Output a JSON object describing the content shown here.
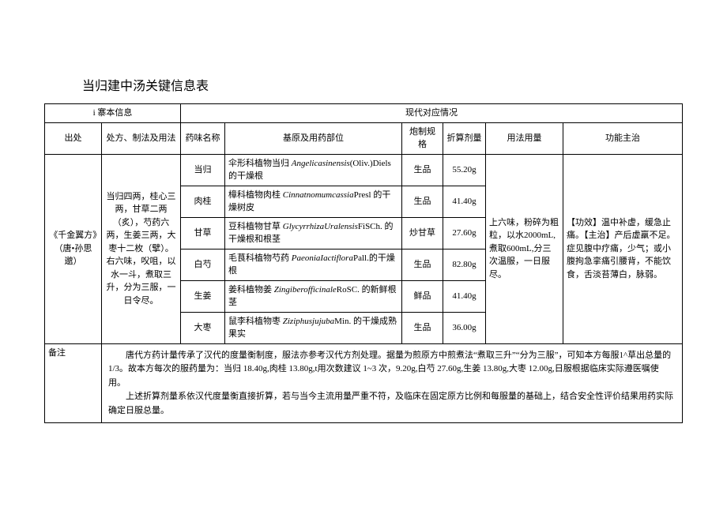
{
  "title": "当归建中汤关键信息表",
  "header_groups": {
    "left": "i 寨本信息",
    "right": "现代对应情况"
  },
  "columns": {
    "source": "出处",
    "rx": "处方、制法及用法",
    "herb": "药味名称",
    "origin": "基原及用药部位",
    "proc": "炮制规格",
    "dose": "折算剂量",
    "usage": "用法用量",
    "func": "功能主治"
  },
  "source": "《千金翼方》（唐•孙思邈）",
  "rx_text": "当归四两，桂心三两，甘草二两（炙），芍药六两，生姜三两，大枣十二枚（擘）。右六味，㕮咀，以水一斗，煮取三升，分为三服，一日令尽。",
  "usage_text": "上六味，粉碎为粗粒，以水2000mL,煮取600mL,分三次温服，一日服尽。",
  "func_text": "【功效】温中补虚，缓急止痛。【主治】产后虚羸不足。症见腹中疗痛，少气；或小腹拘急挛痛引腰背，不能饮食，舌淡苔薄白，脉弱。",
  "rows": [
    {
      "herb": "当归",
      "origin_pre": "伞形科植物当归 ",
      "origin_it": "Angelicasinensis",
      "origin_post": "(Oliv.)Diels的干燥根",
      "proc": "生品",
      "dose": "55.20g"
    },
    {
      "herb": "肉桂",
      "origin_pre": "樟科植物肉桂 ",
      "origin_it": "Cinnatnomumcassia",
      "origin_post": "Presl 的干燥树皮",
      "proc": "生品",
      "dose": "41.40g"
    },
    {
      "herb": "甘草",
      "origin_pre": "豆科植物甘草 ",
      "origin_it": "GlycyrrhizaUralensis",
      "origin_post": "FiSCh. 的干燥根和根茎",
      "proc": "炒甘草",
      "dose": "27.60g"
    },
    {
      "herb": "白芍",
      "origin_pre": "毛茛科植物芍药 ",
      "origin_it": "PaeoniaIactiflora",
      "origin_post": "Pall.的干燥根",
      "proc": "生品",
      "dose": "82.80g"
    },
    {
      "herb": "生姜",
      "origin_pre": "姜科植物姜 ",
      "origin_it": "Zingiberofficinale",
      "origin_post": "RoSC. 的新鲜根茎",
      "proc": "鲜品",
      "dose": "41.40g"
    },
    {
      "herb": "大枣",
      "origin_pre": "鼠李科植物枣 ",
      "origin_it": "Ziziphusjujuba",
      "origin_post": "Min. 的干燥成熟果实",
      "proc": "生品",
      "dose": "36.00g"
    }
  ],
  "notes_label": "备注",
  "notes_p1": "唐代方药计量传承了汉代的度量衡制度，服法亦参考汉代方剂处理。据量为煎原方中煎煮法“煮取三升”“分为三服”，可知本方每服1^草出总量的1/3。故本方每次的服药量为：当归 18.40g,肉桂 13.80g,t用次数建议 1~3 次，9.20g,白芍 27.60g,生姜 13.80g,大枣 12.00g,日服根据临床实际遵医嘱使用。",
  "notes_p2": "上述折算剂量系依汉代度量衡直接折算，若与当今主流用量严重不符，及临床在固定原方比例和每服量的基础上，结合安全性评价结果用药实际确定日服总量。"
}
